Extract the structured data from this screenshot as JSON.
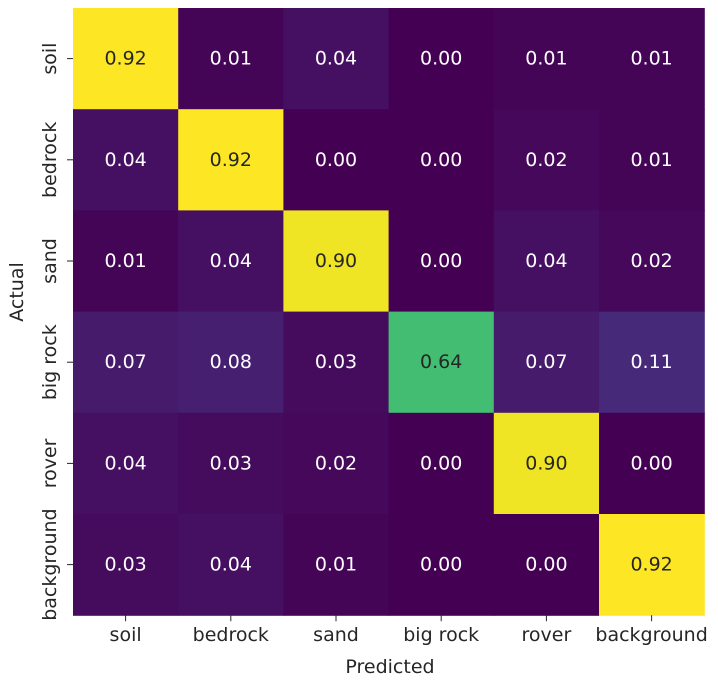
{
  "chart_data": {
    "type": "heatmap",
    "title": "",
    "xlabel": "Predicted",
    "ylabel": "Actual",
    "x_categories": [
      "soil",
      "bedrock",
      "sand",
      "big rock",
      "rover",
      "background"
    ],
    "y_categories": [
      "soil",
      "bedrock",
      "sand",
      "big rock",
      "rover",
      "background"
    ],
    "values": [
      [
        0.92,
        0.01,
        0.04,
        0.0,
        0.01,
        0.01
      ],
      [
        0.04,
        0.92,
        0.0,
        0.0,
        0.02,
        0.01
      ],
      [
        0.01,
        0.04,
        0.9,
        0.0,
        0.04,
        0.02
      ],
      [
        0.07,
        0.08,
        0.03,
        0.64,
        0.07,
        0.11
      ],
      [
        0.04,
        0.03,
        0.02,
        0.0,
        0.9,
        0.0
      ],
      [
        0.03,
        0.04,
        0.01,
        0.0,
        0.0,
        0.92
      ]
    ],
    "value_format": "0.00",
    "colormap": "viridis",
    "color_range": [
      0,
      0.92
    ],
    "colorbar": false,
    "grid": false
  }
}
